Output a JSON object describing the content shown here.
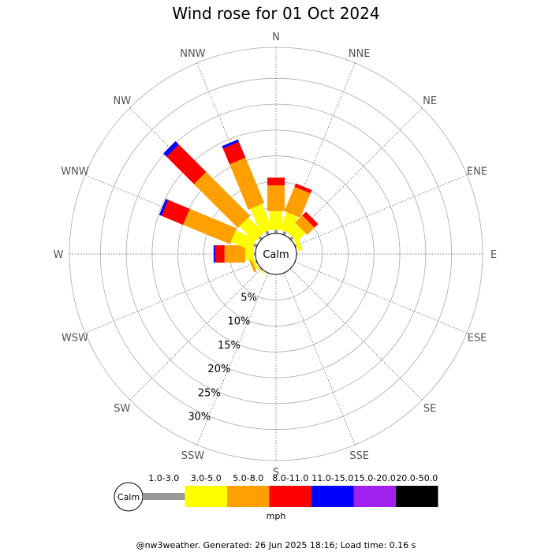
{
  "title": "Wind rose for 01 Oct 2024",
  "footer": "@nw3weather. Generated: 26 Jun 2025 18:16; Load time: 0.16 s",
  "calm_label": "Calm",
  "units_label": "mph",
  "chart_data": {
    "type": "wind-rose",
    "title": "Wind rose for 01 Oct 2024",
    "directions": [
      "N",
      "NNE",
      "NE",
      "ENE",
      "E",
      "ESE",
      "SE",
      "SSE",
      "S",
      "SSW",
      "SW",
      "WSW",
      "W",
      "WNW",
      "NW",
      "NNW"
    ],
    "rings_percent": [
      5,
      10,
      15,
      20,
      25,
      30
    ],
    "ring_labels": [
      "5%",
      "10%",
      "15%",
      "20%",
      "25%",
      "30%"
    ],
    "rmax_percent": 36,
    "speed_bins": [
      {
        "label": "1.0-3.0",
        "color": "#999999"
      },
      {
        "label": "3.0-5.0",
        "color": "#ffff00"
      },
      {
        "label": "5.0-8.0",
        "color": "#ffa000"
      },
      {
        "label": "8.0-11.0",
        "color": "#ff0000"
      },
      {
        "label": "11.0-15.0",
        "color": "#0000ff"
      },
      {
        "label": "15.0-20.0",
        "color": "#a020f0"
      },
      {
        "label": "20.0-50.0",
        "color": "#000000"
      }
    ],
    "units": "mph",
    "cumulative_percent": {
      "N": [
        0.7,
        4.3,
        9.3,
        10.8,
        10.8,
        10.8,
        10.8
      ],
      "NNE": [
        0.7,
        4.3,
        9.4,
        10.1,
        10.1,
        10.1,
        10.1
      ],
      "NE": [
        0.6,
        2.9,
        4.9,
        5.9,
        5.9,
        5.9,
        5.9
      ],
      "ENE": [
        0.3,
        1.1,
        1.1,
        1.1,
        1.1,
        1.1,
        1.1
      ],
      "E": [
        0.2,
        0.2,
        0.2,
        0.2,
        0.2,
        0.2,
        0.2
      ],
      "ESE": [
        0.1,
        0.1,
        0.1,
        0.1,
        0.1,
        0.1,
        0.1
      ],
      "SE": [
        0,
        0,
        0,
        0,
        0,
        0,
        0
      ],
      "SSE": [
        0.1,
        0.1,
        0.1,
        0.1,
        0.1,
        0.1,
        0.1
      ],
      "S": [
        0,
        0,
        0,
        0,
        0,
        0,
        0
      ],
      "SSW": [
        0,
        0,
        0,
        0,
        0,
        0,
        0
      ],
      "SW": [
        0.2,
        0.4,
        0.4,
        0.4,
        0.4,
        0.4,
        0.4
      ],
      "WSW": [
        0.3,
        0.8,
        1.3,
        1.3,
        1.3,
        1.3,
        1.3
      ],
      "W": [
        0.3,
        2.0,
        6.0,
        7.8,
        8.1,
        8.1,
        8.1
      ],
      "WNW": [
        0.7,
        5.0,
        14.8,
        19.3,
        19.8,
        19.8,
        19.8
      ],
      "NW": [
        0.6,
        4.8,
        16.8,
        24.3,
        25.2,
        25.2,
        25.2
      ],
      "NNW": [
        0.8,
        6.0,
        15.5,
        18.8,
        19.3,
        19.3,
        19.3
      ]
    }
  }
}
